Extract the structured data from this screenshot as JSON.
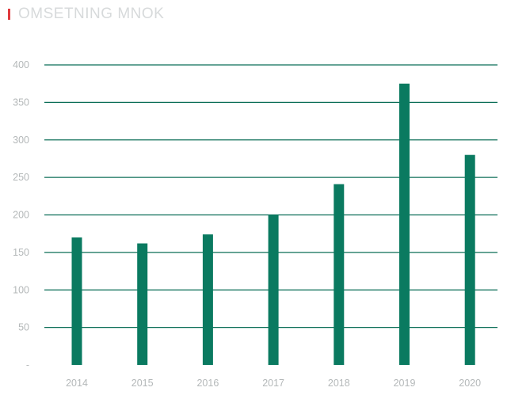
{
  "chart_data": {
    "type": "bar",
    "title": "OMSETNING MNOK",
    "categories": [
      "2014",
      "2015",
      "2016",
      "2017",
      "2018",
      "2019",
      "2020"
    ],
    "values": [
      170,
      162,
      174,
      200,
      241,
      375,
      280
    ],
    "xlabel": "",
    "ylabel": "",
    "ylim": [
      0,
      400
    ],
    "yticks": [
      0,
      50,
      100,
      150,
      200,
      250,
      300,
      350,
      400
    ],
    "ytick_labels": [
      "-",
      "50",
      "100",
      "150",
      "200",
      "250",
      "300",
      "350",
      "400"
    ],
    "grid": true,
    "legend": "none",
    "colors": {
      "bar": "#0a7a60",
      "grid": "#0b6e57",
      "accent": "#e03a3e"
    }
  }
}
